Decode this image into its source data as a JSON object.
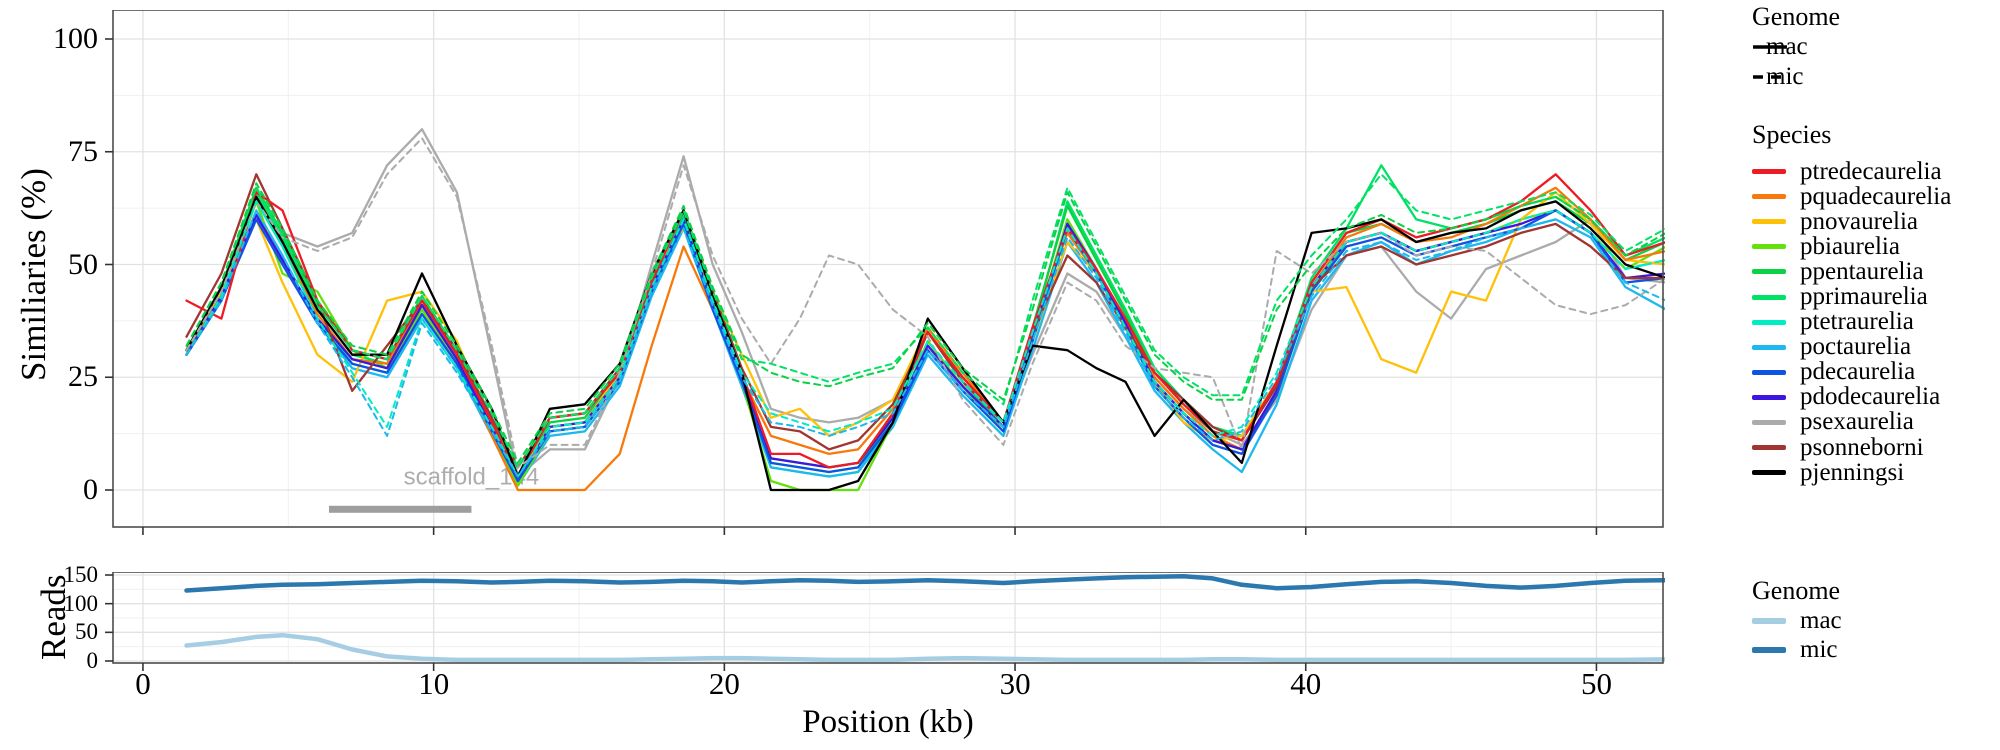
{
  "figure": {
    "main_ylabel": "Similiaries (%)",
    "reads_ylabel": "Reads",
    "xlabel": "Position (kb)",
    "annotation": {
      "label": "scaffold_144",
      "start_kb": 6.4,
      "end_kb": 11.3,
      "bar_color": "#9e9e9e",
      "label_color": "#adadad"
    },
    "legend_genome": {
      "title": "Genome",
      "items": [
        {
          "label": "mac",
          "style": "solid"
        },
        {
          "label": "mic",
          "style": "dashed"
        }
      ]
    },
    "legend_species_title": "Species",
    "legend_reads_title": "Genome",
    "colors": {
      "grid_major": "#e2e2e2",
      "grid_minor": "#f0f0f0",
      "panel_border": "#4d4d4d",
      "tick": "#333333"
    }
  },
  "chart_data": [
    {
      "type": "line",
      "title": "",
      "ylabel": "Similiaries (%)",
      "xlabel": "Position (kb)",
      "ylim": [
        0,
        100
      ],
      "yticks": [
        0,
        25,
        50,
        75,
        100
      ],
      "xticks": [
        0,
        10,
        20,
        30,
        40,
        50
      ],
      "grid": true,
      "legend_position": "right",
      "x": [
        1.5,
        2.7,
        3.9,
        4.8,
        6.0,
        7.2,
        8.4,
        9.6,
        10.8,
        12.0,
        12.9,
        14.0,
        15.2,
        16.4,
        17.5,
        18.6,
        19.6,
        20.6,
        21.6,
        22.6,
        23.6,
        24.6,
        25.8,
        27.0,
        28.2,
        29.6,
        30.6,
        31.8,
        32.8,
        33.8,
        34.8,
        35.8,
        36.8,
        37.8,
        39.0,
        40.2,
        41.4,
        42.6,
        43.8,
        45.0,
        46.2,
        47.4,
        48.6,
        49.8,
        51.0,
        52.4
      ],
      "series": [
        {
          "name": "psexaurelia",
          "color": "#ababab",
          "mac": [
            31,
            44,
            65,
            57,
            54,
            57,
            72,
            80,
            66,
            30,
            3,
            9,
            9,
            25,
            50,
            74,
            50,
            35,
            18,
            16,
            15,
            16,
            20,
            32,
            22,
            14,
            30,
            48,
            44,
            34,
            25,
            18,
            13,
            10,
            20,
            40,
            52,
            54,
            44,
            38,
            49,
            52,
            55,
            60,
            47,
            46
          ],
          "mic": [
            31,
            44,
            64,
            56,
            53,
            56,
            70,
            78,
            65,
            32,
            5,
            10,
            10,
            26,
            48,
            72,
            52,
            38,
            28,
            38,
            52,
            50,
            40,
            34,
            20,
            10,
            28,
            46,
            42,
            32,
            27,
            26,
            25,
            9,
            53,
            48,
            55,
            57,
            52,
            54,
            53,
            47,
            41,
            39,
            41,
            47
          ]
        },
        {
          "name": "ptetraurelia",
          "color": "#00edc3",
          "mac": [
            30,
            43,
            64,
            54,
            38,
            28,
            26,
            40,
            28,
            13,
            1,
            13,
            14,
            24,
            44,
            60,
            41,
            24,
            5,
            4,
            3,
            4,
            15,
            33,
            23,
            13,
            33,
            60,
            49,
            37,
            24,
            17,
            11,
            9,
            21,
            44,
            55,
            57,
            53,
            55,
            57,
            60,
            62,
            57,
            49,
            51
          ],
          "mic": [
            30,
            43,
            64,
            54,
            38,
            26,
            14,
            38,
            27,
            14,
            3,
            14,
            15,
            25,
            45,
            60,
            42,
            26,
            17,
            15,
            13,
            15,
            18,
            33,
            24,
            15,
            35,
            58,
            48,
            36,
            24,
            17,
            12,
            14,
            26,
            45,
            55,
            57,
            53,
            55,
            57,
            60,
            62,
            57,
            49,
            51
          ]
        },
        {
          "name": "poctaurelia",
          "color": "#1cb8ee",
          "mac": [
            30,
            42,
            62,
            52,
            37,
            27,
            25,
            38,
            27,
            12,
            1,
            12,
            13,
            23,
            43,
            58,
            40,
            23,
            5,
            4,
            3,
            4,
            14,
            30,
            21,
            12,
            31,
            55,
            46,
            34,
            22,
            15,
            9,
            4,
            19,
            42,
            52,
            55,
            50,
            53,
            55,
            58,
            60,
            56,
            45,
            40
          ],
          "mic": [
            30,
            42,
            62,
            52,
            37,
            25,
            12,
            37,
            26,
            13,
            3,
            13,
            14,
            24,
            44,
            58,
            41,
            25,
            15,
            14,
            12,
            14,
            17,
            31,
            22,
            14,
            33,
            56,
            47,
            35,
            23,
            16,
            11,
            13,
            25,
            43,
            53,
            55,
            51,
            53,
            56,
            58,
            60,
            56,
            46,
            42
          ]
        },
        {
          "name": "pbiaurelia",
          "color": "#62e10b",
          "mac": [
            30,
            42,
            64,
            48,
            44,
            31,
            27,
            40,
            28,
            13,
            1,
            13,
            14,
            24,
            44,
            60,
            41,
            24,
            2,
            0,
            0,
            0,
            15,
            33,
            23,
            13,
            34,
            60,
            49,
            37,
            24,
            17,
            11,
            9,
            21,
            44,
            55,
            57,
            53,
            55,
            57,
            60,
            62,
            57,
            49,
            54
          ]
        },
        {
          "name": "pprimaurelia",
          "color": "#00e266",
          "mac": [
            31,
            45,
            66,
            56,
            40,
            30,
            28,
            42,
            30,
            15,
            2,
            14,
            15,
            25,
            45,
            61,
            42,
            25,
            6,
            5,
            4,
            5,
            16,
            35,
            24,
            14,
            35,
            64,
            52,
            40,
            27,
            20,
            14,
            12,
            24,
            47,
            58,
            72,
            60,
            58,
            60,
            63,
            65,
            60,
            52,
            56
          ],
          "mic": [
            32,
            46,
            67,
            57,
            41,
            31,
            29,
            43,
            31,
            17,
            5,
            16,
            17,
            27,
            47,
            62,
            44,
            29,
            28,
            26,
            24,
            26,
            28,
            36,
            26,
            19,
            42,
            67,
            55,
            43,
            31,
            25,
            21,
            21,
            42,
            52,
            60,
            70,
            62,
            60,
            62,
            64,
            66,
            61,
            53,
            58
          ]
        },
        {
          "name": "ppentaurelia",
          "color": "#0bd144",
          "mac": [
            31,
            45,
            67,
            57,
            41,
            31,
            29,
            43,
            31,
            16,
            3,
            15,
            16,
            26,
            46,
            62,
            43,
            26,
            7,
            6,
            5,
            6,
            17,
            36,
            25,
            15,
            36,
            63,
            51,
            39,
            26,
            19,
            13,
            11,
            23,
            46,
            57,
            59,
            55,
            57,
            59,
            62,
            64,
            59,
            51,
            55
          ],
          "mic": [
            32,
            46,
            68,
            58,
            42,
            32,
            30,
            44,
            32,
            18,
            6,
            17,
            18,
            28,
            48,
            63,
            45,
            30,
            26,
            24,
            23,
            25,
            27,
            37,
            27,
            20,
            40,
            66,
            54,
            42,
            30,
            24,
            20,
            20,
            40,
            50,
            58,
            61,
            57,
            58,
            60,
            63,
            65,
            60,
            52,
            57
          ]
        },
        {
          "name": "pnovaurelia",
          "color": "#ffc107",
          "mac": [
            31,
            44,
            60,
            46,
            30,
            24,
            42,
            44,
            33,
            15,
            3,
            14,
            15,
            26,
            48,
            58,
            44,
            30,
            16,
            18,
            12,
            15,
            20,
            36,
            25,
            15,
            33,
            55,
            48,
            37,
            24,
            15,
            11,
            12,
            24,
            44,
            45,
            29,
            26,
            44,
            42,
            60,
            66,
            59,
            51,
            50
          ]
        },
        {
          "name": "pquadecaurelia",
          "color": "#f8790b",
          "mac": [
            31,
            43,
            65,
            55,
            39,
            29,
            28,
            41,
            29,
            12,
            0,
            0,
            0,
            8,
            32,
            54,
            40,
            25,
            12,
            10,
            8,
            9,
            18,
            36,
            26,
            15,
            35,
            57,
            48,
            37,
            25,
            18,
            12,
            9,
            22,
            45,
            56,
            59,
            55,
            56,
            59,
            63,
            67,
            60,
            51,
            53
          ]
        },
        {
          "name": "pdodecaurelia",
          "color": "#3d16e0",
          "mac": [
            30,
            43,
            61,
            51,
            38,
            29,
            27,
            41,
            29,
            14,
            2,
            14,
            15,
            25,
            45,
            60,
            41,
            25,
            7,
            6,
            5,
            6,
            16,
            32,
            23,
            14,
            34,
            59,
            49,
            37,
            24,
            17,
            11,
            9,
            22,
            45,
            55,
            57,
            53,
            55,
            57,
            59,
            62,
            57,
            47,
            48
          ]
        },
        {
          "name": "pdecaurelia",
          "color": "#1053e3",
          "mac": [
            30,
            42,
            60,
            50,
            37,
            28,
            26,
            39,
            28,
            13,
            2,
            13,
            14,
            24,
            44,
            59,
            40,
            24,
            6,
            5,
            4,
            5,
            15,
            31,
            22,
            13,
            33,
            58,
            48,
            36,
            23,
            16,
            10,
            8,
            21,
            44,
            54,
            56,
            52,
            54,
            56,
            58,
            62,
            57,
            46,
            47
          ]
        },
        {
          "name": "psonneborni",
          "color": "#a13531",
          "mac": [
            34,
            48,
            70,
            58,
            42,
            22,
            32,
            42,
            31,
            16,
            5,
            16,
            17,
            27,
            47,
            62,
            44,
            27,
            14,
            13,
            9,
            11,
            19,
            35,
            24,
            15,
            35,
            52,
            46,
            36,
            26,
            20,
            14,
            11,
            23,
            45,
            52,
            54,
            50,
            52,
            54,
            57,
            59,
            54,
            47,
            47
          ]
        },
        {
          "name": "ptredecaurelia",
          "color": "#ed1c24",
          "mac": [
            42,
            38,
            66,
            62,
            42,
            31,
            29,
            42,
            30,
            15,
            3,
            16,
            17,
            26,
            46,
            62,
            43,
            26,
            8,
            8,
            5,
            6,
            17,
            35,
            25,
            15,
            36,
            58,
            49,
            38,
            26,
            19,
            13,
            11,
            24,
            46,
            57,
            60,
            56,
            58,
            60,
            64,
            70,
            62,
            52,
            55
          ]
        },
        {
          "name": "pjenningsi",
          "color": "#000000",
          "mac": [
            31,
            45,
            65,
            55,
            40,
            30,
            30,
            48,
            32,
            18,
            3,
            18,
            19,
            28,
            48,
            62,
            43,
            26,
            0,
            0,
            0,
            2,
            15,
            38,
            27,
            15,
            32,
            31,
            27,
            24,
            12,
            20,
            13,
            6,
            32,
            57,
            58,
            60,
            55,
            57,
            58,
            62,
            64,
            58,
            50,
            47
          ]
        }
      ]
    },
    {
      "type": "line",
      "title": "",
      "ylabel": "Reads",
      "xlabel": "Position (kb)",
      "ylim": [
        0,
        150
      ],
      "yticks": [
        0,
        50,
        100,
        150
      ],
      "xticks": [
        0,
        10,
        20,
        30,
        40,
        50
      ],
      "grid": true,
      "legend_position": "right",
      "x": [
        1.5,
        2.7,
        3.9,
        4.8,
        6.0,
        7.2,
        8.4,
        9.6,
        10.8,
        12.0,
        12.9,
        14.0,
        15.2,
        16.4,
        17.5,
        18.6,
        19.6,
        20.6,
        21.6,
        22.6,
        23.6,
        24.6,
        25.8,
        27.0,
        28.2,
        29.6,
        30.6,
        31.8,
        32.8,
        33.8,
        34.8,
        35.8,
        36.8,
        37.8,
        39.0,
        40.2,
        41.4,
        42.6,
        43.8,
        45.0,
        46.2,
        47.4,
        48.6,
        49.8,
        51.0,
        52.4
      ],
      "series": [
        {
          "name": "mac",
          "color": "#a6cee3",
          "values": [
            27,
            33,
            42,
            45,
            38,
            20,
            8,
            4,
            2,
            2,
            2,
            2,
            2,
            2,
            3,
            4,
            5,
            5,
            4,
            3,
            2,
            2,
            2,
            4,
            5,
            4,
            3,
            2,
            2,
            2,
            2,
            2,
            3,
            3,
            2,
            2,
            2,
            2,
            2,
            2,
            2,
            2,
            2,
            2,
            2,
            3
          ]
        },
        {
          "name": "mic",
          "color": "#2b77ae",
          "values": [
            123,
            127,
            131,
            133,
            134,
            136,
            138,
            140,
            139,
            137,
            138,
            140,
            139,
            137,
            138,
            140,
            139,
            137,
            139,
            141,
            140,
            138,
            139,
            141,
            139,
            136,
            139,
            142,
            144,
            146,
            147,
            148,
            144,
            133,
            127,
            129,
            134,
            138,
            139,
            136,
            131,
            128,
            131,
            136,
            140,
            141
          ]
        }
      ]
    }
  ]
}
